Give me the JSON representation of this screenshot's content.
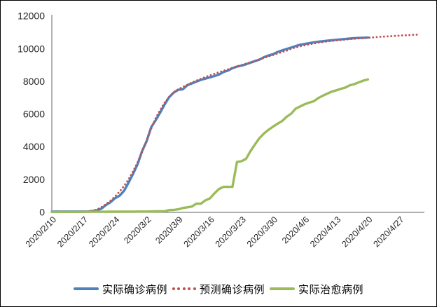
{
  "chart": {
    "background": "#ffffff",
    "frame_border_color": "#000000"
  },
  "chart_data": {
    "type": "line",
    "title": "",
    "xlabel": "",
    "ylabel": "",
    "grid": false,
    "legend_position": "bottom",
    "axis_color": "#808080",
    "text_color": "#262626",
    "x_axis": {
      "start_date": "2020/2/10",
      "unit": "day",
      "tick_interval_days": 7,
      "axis_span_days": 82.5,
      "tick_labels": [
        "2020/2/10",
        "2020/2/17",
        "2020/2/24",
        "2020/3/2",
        "2020/3/9",
        "2020/3/16",
        "2020/3/23",
        "2020/3/30",
        "2020/4/6",
        "2020/4/13",
        "2020/4/20",
        "2020/4/27"
      ]
    },
    "y_axis": {
      "min": 0,
      "max": 12000,
      "tick_step": 2000,
      "ticks": [
        0,
        2000,
        4000,
        6000,
        8000,
        10000,
        12000
      ]
    },
    "series": [
      {
        "key": "actual-confirmed",
        "name": "实际确诊病例",
        "color": "#4F81BD",
        "line_style": "solid",
        "start_offset_days": 0,
        "end_date": "2020/4/20",
        "values": [
          27,
          28,
          28,
          28,
          28,
          28,
          29,
          30,
          31,
          60,
          110,
          210,
          435,
          600,
          850,
          1000,
          1300,
          1800,
          2340,
          2930,
          3740,
          4340,
          5190,
          5620,
          6090,
          6590,
          7040,
          7310,
          7480,
          7510,
          7760,
          7870,
          7980,
          8090,
          8160,
          8240,
          8320,
          8410,
          8565,
          8650,
          8800,
          8900,
          8960,
          9040,
          9140,
          9240,
          9330,
          9480,
          9580,
          9660,
          9790,
          9890,
          9975,
          10060,
          10155,
          10237,
          10284,
          10331,
          10384,
          10423,
          10450,
          10480,
          10512,
          10537,
          10564,
          10591,
          10613,
          10635,
          10653,
          10661,
          10674
        ]
      },
      {
        "key": "predicted-confirmed",
        "name": "预测确诊病例",
        "color": "#C0504D",
        "line_style": "dotted",
        "start_offset_days": 8,
        "end_date": "2020/5/1",
        "values": [
          40,
          80,
          160,
          300,
          480,
          700,
          950,
          1250,
          1600,
          2000,
          2500,
          3050,
          3700,
          4400,
          5100,
          5750,
          6250,
          6700,
          7050,
          7330,
          7520,
          7650,
          7790,
          7920,
          8040,
          8150,
          8260,
          8360,
          8460,
          8550,
          8640,
          8730,
          8820,
          8910,
          9000,
          9080,
          9160,
          9250,
          9340,
          9430,
          9520,
          9610,
          9700,
          9790,
          9870,
          9990,
          10070,
          10140,
          10200,
          10260,
          10310,
          10360,
          10400,
          10440,
          10470,
          10500,
          10530,
          10555,
          10580,
          10605,
          10625,
          10645,
          10665,
          10685,
          10705,
          10725,
          10745,
          10762,
          10778,
          10794,
          10810,
          10825,
          10840,
          10855
        ]
      },
      {
        "key": "actual-cured",
        "name": "实际治愈病例",
        "color": "#9BBB59",
        "line_style": "solid",
        "start_offset_days": 0,
        "end_date": "2020/4/20",
        "values": [
          3,
          4,
          7,
          7,
          7,
          9,
          9,
          9,
          12,
          16,
          16,
          16,
          18,
          22,
          22,
          22,
          24,
          26,
          27,
          30,
          30,
          31,
          34,
          41,
          41,
          47,
          118,
          130,
          166,
          247,
          288,
          333,
          510,
          510,
          714,
          834,
          1137,
          1407,
          1540,
          1540,
          1540,
          3064,
          3110,
          3250,
          3730,
          4144,
          4528,
          4811,
          5033,
          5228,
          5408,
          5567,
          5828,
          6021,
          6325,
          6463,
          6598,
          6694,
          6776,
          6973,
          7117,
          7243,
          7368,
          7447,
          7534,
          7616,
          7757,
          7829,
          7937,
          8042,
          8114
        ]
      }
    ]
  }
}
